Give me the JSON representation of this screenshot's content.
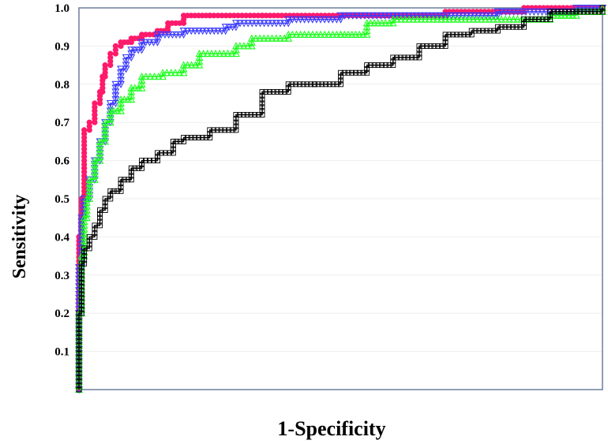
{
  "chart_data": {
    "type": "line",
    "xlabel": "1-Specificity",
    "ylabel": "Sensitivity",
    "xlim": [
      0,
      1
    ],
    "ylim": [
      0,
      1.0
    ],
    "y_ticks": [
      "0.1",
      "0.2",
      "0.3",
      "0.4",
      "0.5",
      "0.6",
      "0.7",
      "0.8",
      "0.9",
      "1.0"
    ],
    "grid": true,
    "legend": "none",
    "series": [
      {
        "color": "#ff1a6b",
        "marker": "circle",
        "x": [
          0,
          0,
          0,
          0.005,
          0.01,
          0.01,
          0.02,
          0.03,
          0.03,
          0.04,
          0.045,
          0.05,
          0.06,
          0.07,
          0.08,
          0.1,
          0.12,
          0.15,
          0.17,
          0.2,
          0.25,
          0.35,
          0.5,
          0.7,
          0.85,
          1.0
        ],
        "y": [
          0,
          0.2,
          0.4,
          0.5,
          0.58,
          0.68,
          0.7,
          0.72,
          0.75,
          0.78,
          0.82,
          0.85,
          0.88,
          0.9,
          0.91,
          0.92,
          0.93,
          0.94,
          0.96,
          0.98,
          0.98,
          0.98,
          0.98,
          0.99,
          1.0,
          1.0
        ]
      },
      {
        "color": "#3b3bff",
        "marker": "triangle-down",
        "x": [
          0,
          0,
          0,
          0.005,
          0.01,
          0.02,
          0.03,
          0.04,
          0.05,
          0.06,
          0.07,
          0.08,
          0.09,
          0.1,
          0.12,
          0.15,
          0.2,
          0.28,
          0.3,
          0.4,
          0.5,
          0.6,
          0.8,
          0.9,
          0.95,
          1.0
        ],
        "y": [
          0,
          0.2,
          0.32,
          0.45,
          0.5,
          0.55,
          0.6,
          0.65,
          0.7,
          0.75,
          0.8,
          0.84,
          0.87,
          0.89,
          0.91,
          0.93,
          0.94,
          0.95,
          0.96,
          0.97,
          0.98,
          0.98,
          0.99,
          0.99,
          1.0,
          1.0
        ]
      },
      {
        "color": "#1aff1a",
        "marker": "triangle-up",
        "x": [
          0,
          0,
          0.005,
          0.01,
          0.015,
          0.02,
          0.03,
          0.04,
          0.05,
          0.06,
          0.08,
          0.1,
          0.12,
          0.16,
          0.2,
          0.23,
          0.3,
          0.33,
          0.4,
          0.5,
          0.55,
          0.6,
          0.7,
          0.83,
          0.9,
          0.95,
          1.0
        ],
        "y": [
          0,
          0.2,
          0.35,
          0.45,
          0.5,
          0.55,
          0.6,
          0.65,
          0.7,
          0.73,
          0.76,
          0.79,
          0.82,
          0.83,
          0.85,
          0.88,
          0.9,
          0.92,
          0.93,
          0.93,
          0.96,
          0.97,
          0.97,
          0.97,
          0.98,
          0.99,
          1.0
        ]
      },
      {
        "color": "#000000",
        "marker": "square",
        "x": [
          0,
          0,
          0.005,
          0.01,
          0.02,
          0.03,
          0.04,
          0.05,
          0.06,
          0.08,
          0.1,
          0.12,
          0.15,
          0.18,
          0.2,
          0.25,
          0.3,
          0.35,
          0.4,
          0.45,
          0.5,
          0.55,
          0.6,
          0.65,
          0.7,
          0.75,
          0.8,
          0.85,
          0.9,
          0.95,
          1.0
        ],
        "y": [
          0,
          0.2,
          0.33,
          0.37,
          0.4,
          0.43,
          0.47,
          0.5,
          0.52,
          0.55,
          0.58,
          0.6,
          0.62,
          0.65,
          0.66,
          0.68,
          0.72,
          0.78,
          0.8,
          0.8,
          0.83,
          0.85,
          0.87,
          0.9,
          0.93,
          0.94,
          0.95,
          0.97,
          0.99,
          0.99,
          1.0
        ]
      }
    ]
  }
}
